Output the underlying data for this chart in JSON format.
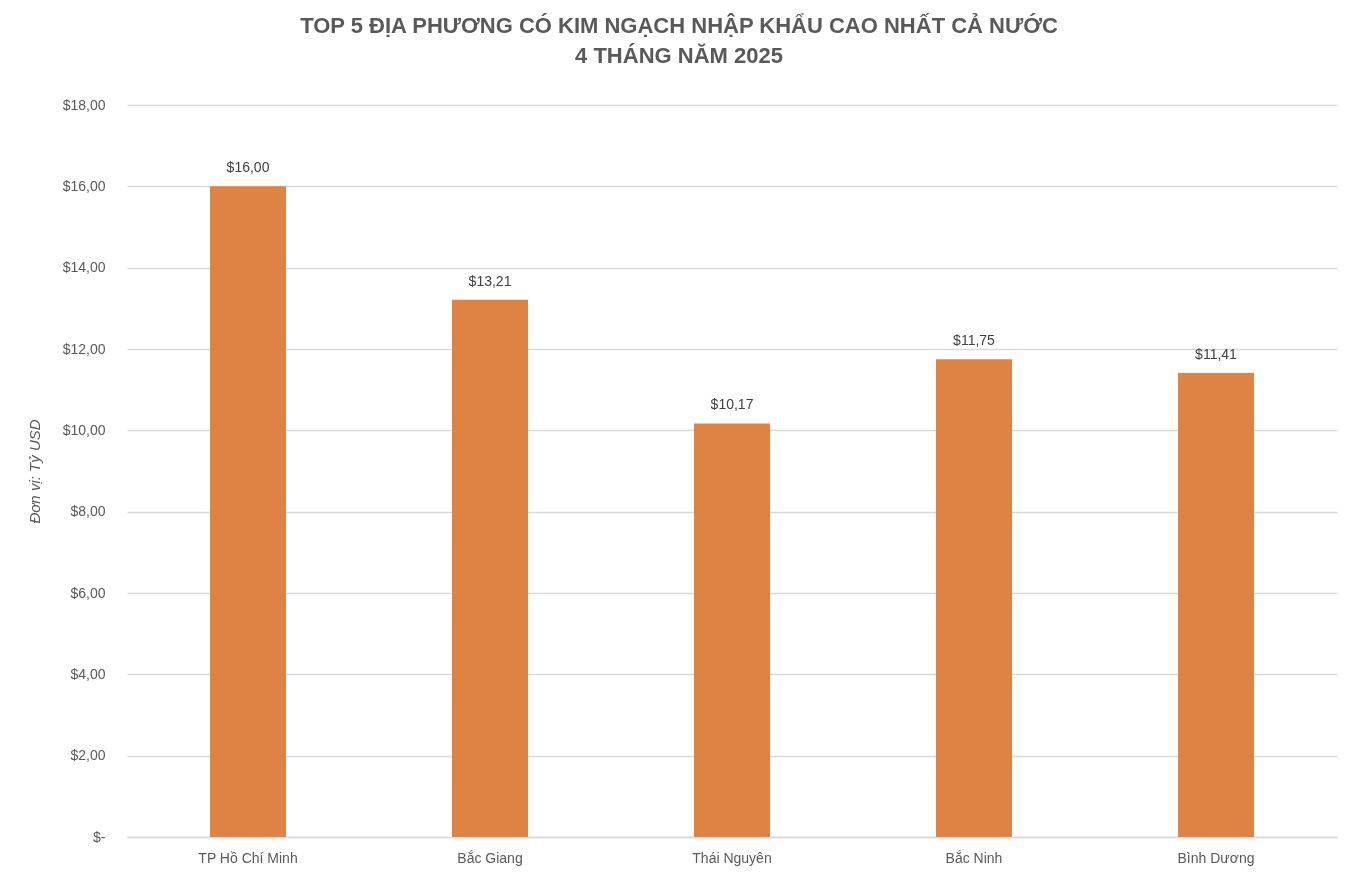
{
  "chart_data": {
    "type": "bar",
    "title": "TOP 5 ĐỊA PHƯƠNG CÓ KIM NGẠCH NHẬP KHẨU CAO NHẤT CẢ NƯỚC",
    "subtitle": "4 THÁNG NĂM 2025",
    "ylabel": "Đơn vị: Tỷ USD",
    "categories": [
      "TP Hồ Chí Minh",
      "Bắc Giang",
      "Thái Nguyên",
      "Bắc Ninh",
      "Bình Dương"
    ],
    "values": [
      16.0,
      13.21,
      10.17,
      11.75,
      11.41
    ],
    "value_labels": [
      "$16,00",
      "$13,21",
      "$10,17",
      "$11,75",
      "$11,41"
    ],
    "color": "#df8344",
    "ylim": [
      0,
      18
    ],
    "yticks": [
      {
        "value": 0,
        "label": "$-"
      },
      {
        "value": 2,
        "label": "$2,00"
      },
      {
        "value": 4,
        "label": "$4,00"
      },
      {
        "value": 6,
        "label": "$6,00"
      },
      {
        "value": 8,
        "label": "$8,00"
      },
      {
        "value": 10,
        "label": "$10,00"
      },
      {
        "value": 12,
        "label": "$12,00"
      },
      {
        "value": 14,
        "label": "$14,00"
      },
      {
        "value": 16,
        "label": "$16,00"
      },
      {
        "value": 18,
        "label": "$18,00"
      }
    ],
    "grid": "y"
  }
}
